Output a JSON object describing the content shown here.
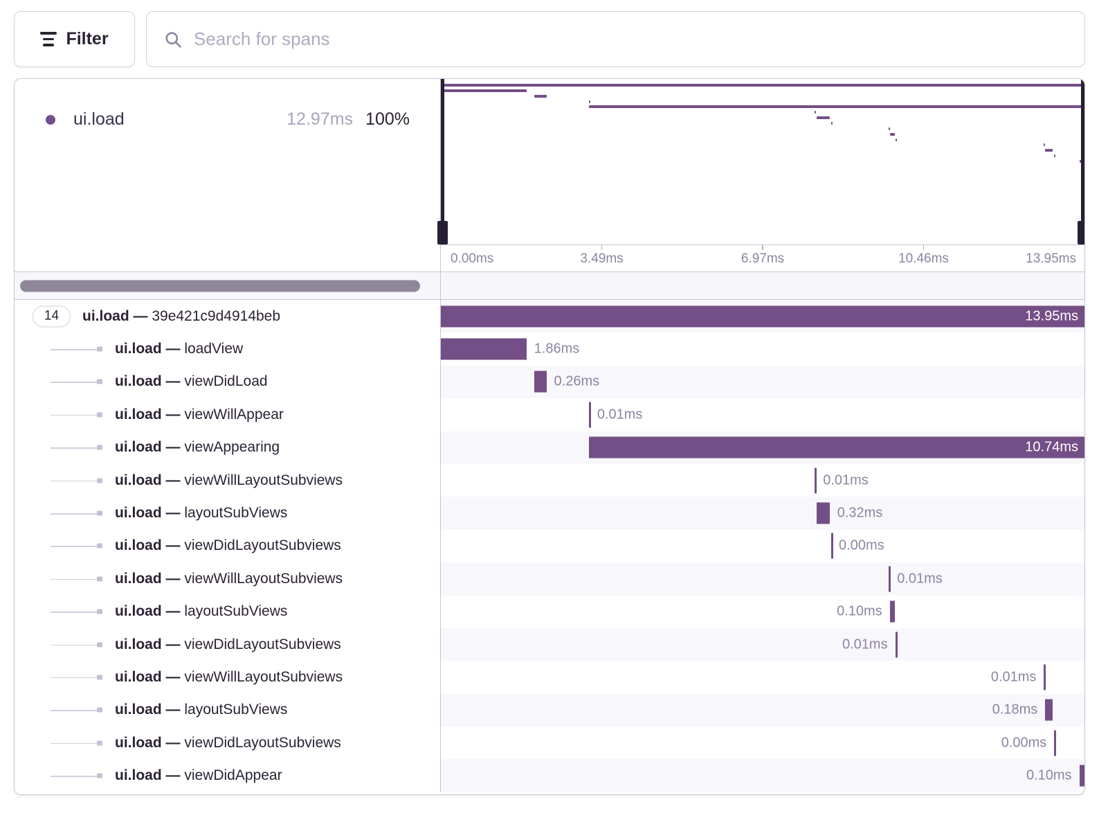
{
  "toolbar": {
    "filter_label": "Filter",
    "search_placeholder": "Search for spans"
  },
  "legend": {
    "op": "ui.load",
    "duration": "12.97ms",
    "percent": "100%"
  },
  "minimap": {
    "axis_ticks": [
      {
        "label": "0.00ms",
        "pct": 0,
        "align": "left"
      },
      {
        "label": "3.49ms",
        "pct": 25,
        "align": "center"
      },
      {
        "label": "6.97ms",
        "pct": 50,
        "align": "center"
      },
      {
        "label": "10.46ms",
        "pct": 75,
        "align": "center"
      },
      {
        "label": "13.95ms",
        "pct": 100,
        "align": "right"
      }
    ]
  },
  "trace": {
    "root_badge": "14",
    "rows": [
      {
        "op": "ui.load",
        "name": "39e421c9d4914beb",
        "duration": "13.95ms",
        "start_pct": 0,
        "width_pct": 100,
        "marker": "bar",
        "label_side": "inside",
        "is_root": true
      },
      {
        "op": "ui.load",
        "name": "loadView",
        "duration": "1.86ms",
        "start_pct": 0,
        "width_pct": 13.3,
        "marker": "bar",
        "label_side": "right"
      },
      {
        "op": "ui.load",
        "name": "viewDidLoad",
        "duration": "0.26ms",
        "start_pct": 14.5,
        "width_pct": 1.9,
        "marker": "bar",
        "label_side": "right"
      },
      {
        "op": "ui.load",
        "name": "viewWillAppear",
        "duration": "0.01ms",
        "start_pct": 23.0,
        "width_pct": 0.1,
        "marker": "tick",
        "label_side": "right"
      },
      {
        "op": "ui.load",
        "name": "viewAppearing",
        "duration": "10.74ms",
        "start_pct": 23.0,
        "width_pct": 77,
        "marker": "bar",
        "label_side": "inside"
      },
      {
        "op": "ui.load",
        "name": "viewWillLayoutSubviews",
        "duration": "0.01ms",
        "start_pct": 58.1,
        "width_pct": 0.1,
        "marker": "tick",
        "label_side": "right"
      },
      {
        "op": "ui.load",
        "name": "layoutSubViews",
        "duration": "0.32ms",
        "start_pct": 58.4,
        "width_pct": 2.0,
        "marker": "bar",
        "label_side": "right"
      },
      {
        "op": "ui.load",
        "name": "viewDidLayoutSubviews",
        "duration": "0.00ms",
        "start_pct": 60.6,
        "width_pct": 0.05,
        "marker": "tick",
        "label_side": "right"
      },
      {
        "op": "ui.load",
        "name": "viewWillLayoutSubviews",
        "duration": "0.01ms",
        "start_pct": 69.6,
        "width_pct": 0.1,
        "marker": "tick",
        "label_side": "right"
      },
      {
        "op": "ui.load",
        "name": "layoutSubViews",
        "duration": "0.10ms",
        "start_pct": 69.75,
        "width_pct": 0.8,
        "marker": "bar",
        "label_side": "left"
      },
      {
        "op": "ui.load",
        "name": "viewDidLayoutSubviews",
        "duration": "0.01ms",
        "start_pct": 70.6,
        "width_pct": 0.1,
        "marker": "tick",
        "label_side": "left"
      },
      {
        "op": "ui.load",
        "name": "viewWillLayoutSubviews",
        "duration": "0.01ms",
        "start_pct": 93.7,
        "width_pct": 0.1,
        "marker": "tick",
        "label_side": "left"
      },
      {
        "op": "ui.load",
        "name": "layoutSubViews",
        "duration": "0.18ms",
        "start_pct": 93.9,
        "width_pct": 1.2,
        "marker": "bar",
        "label_side": "left"
      },
      {
        "op": "ui.load",
        "name": "viewDidLayoutSubviews",
        "duration": "0.00ms",
        "start_pct": 95.3,
        "width_pct": 0.05,
        "marker": "tick",
        "label_side": "left"
      },
      {
        "op": "ui.load",
        "name": "viewDidAppear",
        "duration": "0.10ms",
        "start_pct": 99.2,
        "width_pct": 0.8,
        "marker": "bar",
        "label_side": "left"
      }
    ]
  }
}
